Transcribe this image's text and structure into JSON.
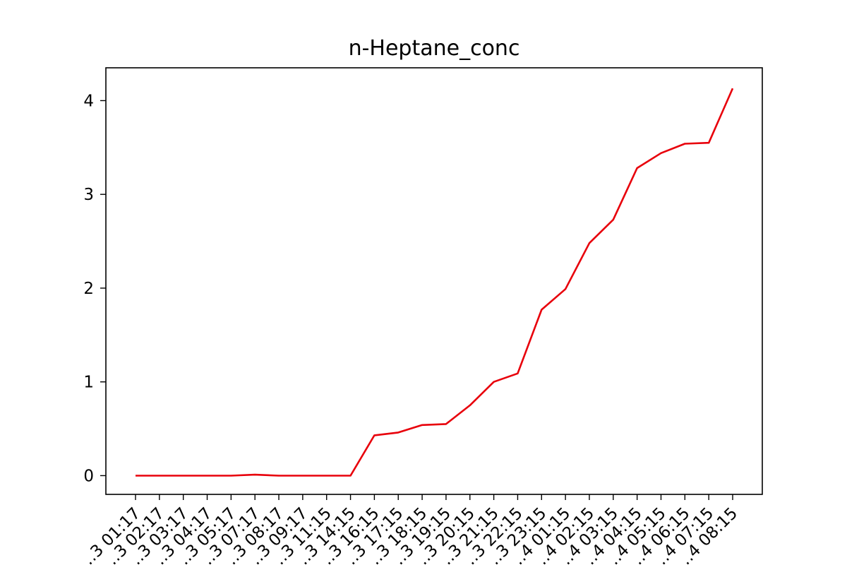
{
  "chart_data": {
    "type": "line",
    "title": "n-Heptane_conc",
    "xlabel": "",
    "ylabel": "",
    "ylim": [
      -0.2,
      4.35
    ],
    "yticks": [
      0,
      1,
      2,
      3,
      4
    ],
    "x_tick_labels": [
      "…3 01:17",
      "…3 02:17",
      "…3 03:17",
      "…3 04:17",
      "…3 05:17",
      "…3 07:17",
      "…3 08:17",
      "…3 09:17",
      "…3 11:15",
      "…3 14:15",
      "…3 16:15",
      "…3 17:15",
      "…3 18:15",
      "…3 19:15",
      "…3 20:15",
      "…3 21:15",
      "…3 22:15",
      "…3 23:15",
      "…4 01:15",
      "…4 02:15",
      "…4 03:15",
      "…4 04:15",
      "…4 05:15",
      "…4 06:15",
      "…4 07:15",
      "…4 08:15"
    ],
    "series": [
      {
        "color": "#e8000b",
        "values": [
          0,
          0,
          0,
          0,
          0,
          0.01,
          0,
          0,
          0,
          0,
          0.43,
          0.46,
          0.54,
          0.55,
          0.75,
          1.0,
          1.09,
          1.77,
          1.99,
          2.48,
          2.73,
          3.28,
          3.44,
          3.54,
          3.55,
          4.13
        ]
      }
    ],
    "grid": false,
    "legend": "none"
  }
}
